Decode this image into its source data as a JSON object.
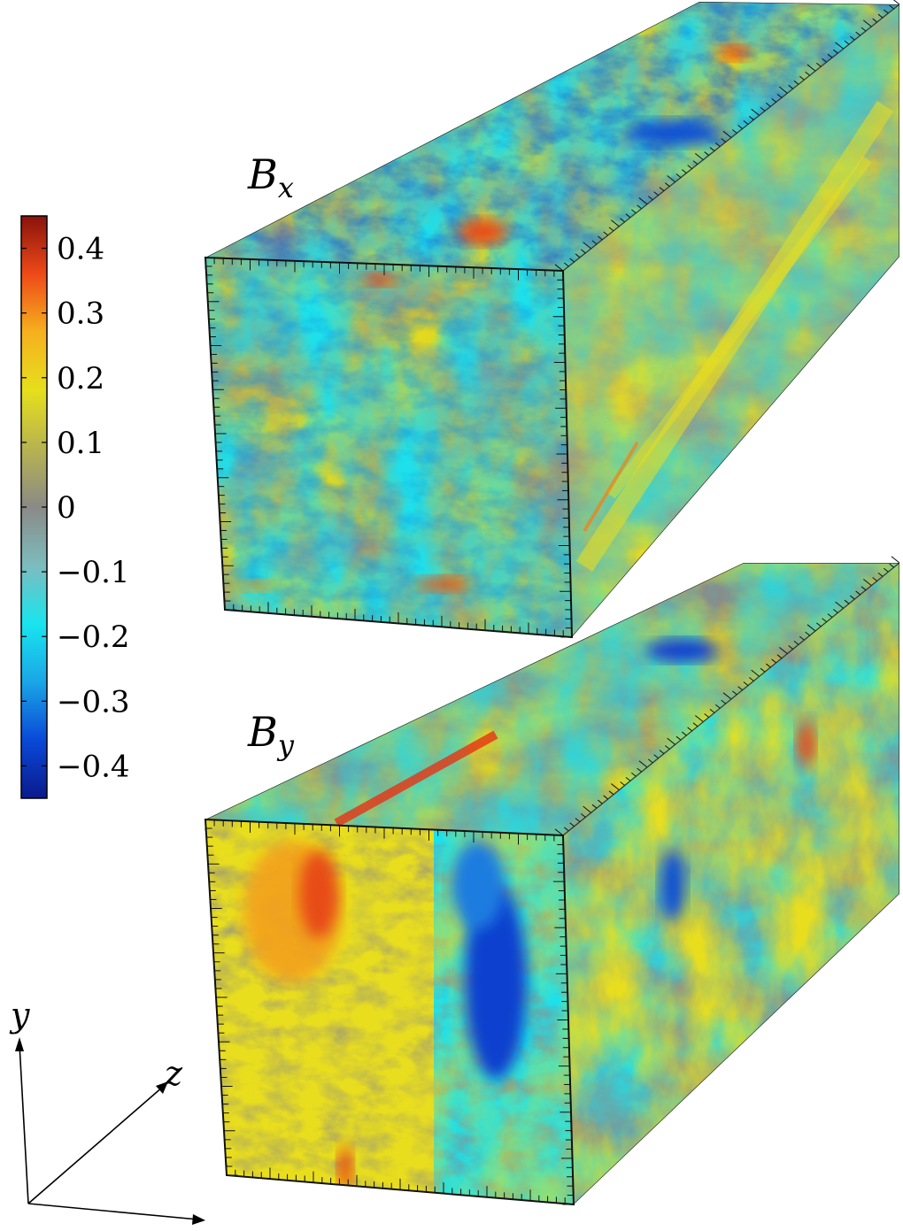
{
  "colorbar": {
    "ticks": [
      "0.4",
      "0.3",
      "0.2",
      "0.1",
      "0",
      "−0.1",
      "−0.2",
      "−0.3",
      "−0.4"
    ],
    "tick_values": [
      0.4,
      0.3,
      0.2,
      0.1,
      0,
      -0.1,
      -0.2,
      -0.3,
      -0.4
    ],
    "range": [
      -0.45,
      0.45
    ],
    "colormap": [
      "#0a1a8c",
      "#0a49d8",
      "#1aa6e6",
      "#19e5ee",
      "#7dbcbe",
      "#8a8a86",
      "#b7b350",
      "#e6df1c",
      "#f6b11e",
      "#ee4a18",
      "#8a120c"
    ]
  },
  "panels": [
    {
      "id": "bx",
      "label_main": "B",
      "label_sub": "x"
    },
    {
      "id": "by",
      "label_main": "B",
      "label_sub": "y"
    }
  ],
  "axes": {
    "x": "",
    "y": "y",
    "z": "z"
  },
  "colors": {
    "yellow": "#e9de1e",
    "gray": "#8c8c88",
    "cyan": "#1ee0ea",
    "blue": "#0a3fcf",
    "orange": "#f3a51e",
    "red": "#e33414"
  }
}
